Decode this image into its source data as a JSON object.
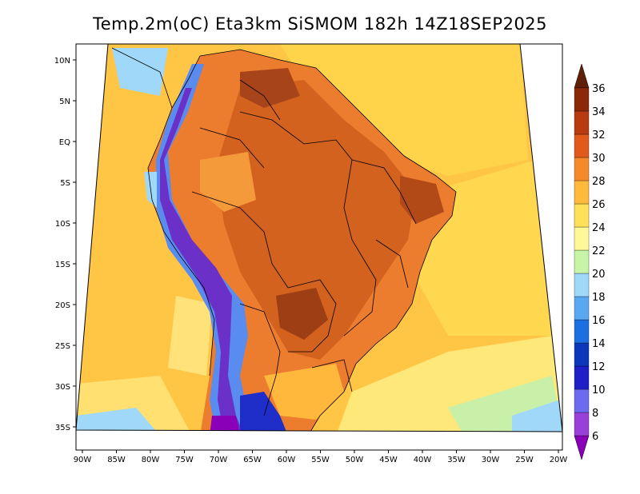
{
  "title": "Temp.2m(oC) Eta3km SiSMOM 182h 14Z18SEP2025",
  "lat_labels": [
    "10N",
    "5N",
    "EQ",
    "5S",
    "10S",
    "15S",
    "20S",
    "25S",
    "30S",
    "35S"
  ],
  "lon_labels": [
    "90W",
    "85W",
    "80W",
    "75W",
    "70W",
    "65W",
    "60W",
    "55W",
    "50W",
    "45W",
    "40W",
    "35W",
    "30W",
    "25W",
    "20W"
  ],
  "colorbar": {
    "labels": [
      "6",
      "8",
      "10",
      "12",
      "14",
      "16",
      "18",
      "20",
      "22",
      "24",
      "26",
      "28",
      "30",
      "32",
      "34",
      "36"
    ],
    "colors": [
      "#8a00b8",
      "#9a3fd8",
      "#6b6bf0",
      "#1f1fc8",
      "#0a38b8",
      "#1c6fe0",
      "#5aa8f0",
      "#9fd8f8",
      "#c8f4a8",
      "#fff898",
      "#ffe05a",
      "#ffba3c",
      "#f58a2c",
      "#e05a1c",
      "#b83a10",
      "#8a2808",
      "#602008"
    ]
  },
  "colors": {
    "ocean_warm": "#ffd23c",
    "ocean_mid": "#ffbe3e",
    "ocean_cool": "#ffe878",
    "land_hot": "#e9722a",
    "land_very_hot": "#c4561e",
    "land_extreme": "#9c3c14",
    "andes_cold": "#5a5ae8",
    "andes_coldest": "#7a18b8",
    "coast_cool": "#8ed4f4",
    "border": "#000000"
  }
}
